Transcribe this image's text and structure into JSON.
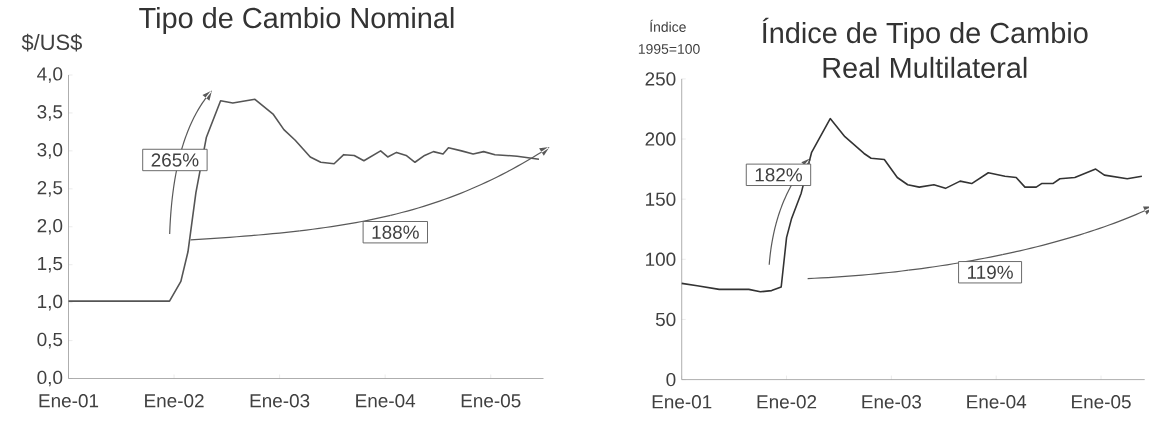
{
  "chart_data": [
    {
      "type": "line",
      "title": "Tipo de Cambio Nominal",
      "ylabel": "$/US$",
      "x": [
        "2001-01-01",
        "2001-12-16",
        "2002-01-25",
        "2002-02-19",
        "2002-03-16",
        "2002-04-22",
        "2002-06-10",
        "2002-07-22",
        "2002-10-07",
        "2002-12-10",
        "2003-01-16",
        "2003-02-25",
        "2003-04-16",
        "2003-05-22",
        "2003-07-07",
        "2003-08-10",
        "2003-09-16",
        "2003-10-19",
        "2003-12-16",
        "2004-01-10",
        "2004-02-10",
        "2004-03-13",
        "2004-04-13",
        "2004-05-16",
        "2004-06-16",
        "2004-07-19",
        "2004-08-07",
        "2004-09-22",
        "2004-11-01",
        "2004-12-07",
        "2005-01-16",
        "2005-04-01",
        "2005-06-16"
      ],
      "values": [
        1.02,
        1.02,
        1.28,
        1.67,
        2.45,
        3.18,
        3.66,
        3.63,
        3.68,
        3.48,
        3.28,
        3.14,
        2.92,
        2.85,
        2.83,
        2.95,
        2.94,
        2.87,
        3.0,
        2.92,
        2.98,
        2.94,
        2.85,
        2.94,
        2.99,
        2.96,
        3.04,
        3.0,
        2.96,
        2.99,
        2.95,
        2.93,
        2.89
      ],
      "color": "#555555",
      "xlim": [
        "2001-01-01",
        "2005-07-01"
      ],
      "xticks": [
        {
          "value": "2001-01-01",
          "label": "Ene-01"
        },
        {
          "value": "2002-01-01",
          "label": "Ene-02"
        },
        {
          "value": "2003-01-01",
          "label": "Ene-03"
        },
        {
          "value": "2004-01-01",
          "label": "Ene-04"
        },
        {
          "value": "2005-01-01",
          "label": "Ene-05"
        }
      ],
      "ylim": [
        0,
        4
      ],
      "yticks": [
        {
          "value": 0,
          "label": "0,0"
        },
        {
          "value": 0.5,
          "label": "0,5"
        },
        {
          "value": 1,
          "label": "1,0"
        },
        {
          "value": 1.5,
          "label": "1,5"
        },
        {
          "value": 2,
          "label": "2,0"
        },
        {
          "value": 2.5,
          "label": "2,5"
        },
        {
          "value": 3,
          "label": "3,0"
        },
        {
          "value": 3.5,
          "label": "3,5"
        },
        {
          "value": 4,
          "label": "4,0"
        }
      ],
      "annotations": [
        "265%",
        "188%"
      ]
    },
    {
      "type": "line",
      "title": "Índice de Tipo de Cambio Real Multilateral",
      "ylabel": "Índice 1995=100",
      "x": [
        "2001-01-01",
        "2001-02-25",
        "2001-05-10",
        "2001-08-22",
        "2001-10-01",
        "2001-11-10",
        "2001-12-13",
        "2002-01-01",
        "2002-01-19",
        "2002-02-22",
        "2002-03-28",
        "2002-06-01",
        "2002-07-22",
        "2002-09-28",
        "2002-10-22",
        "2002-12-07",
        "2003-01-22",
        "2003-02-28",
        "2003-04-07",
        "2003-05-28",
        "2003-07-07",
        "2003-08-28",
        "2003-10-07",
        "2003-12-04",
        "2004-02-01",
        "2004-03-10",
        "2004-04-10",
        "2004-05-19",
        "2004-06-07",
        "2004-07-16",
        "2004-08-10",
        "2004-10-01",
        "2004-12-13",
        "2005-01-13",
        "2005-04-01",
        "2005-05-22"
      ],
      "values": [
        80,
        78,
        75,
        75,
        73,
        74,
        77,
        118,
        134,
        155,
        189,
        217,
        202,
        188,
        184,
        183,
        168,
        162,
        160,
        162,
        159,
        165,
        163,
        172,
        169,
        168,
        160,
        160,
        163,
        163,
        167,
        168,
        175,
        170,
        167,
        169
      ],
      "color": "#333333",
      "xlim": [
        "2001-01-01",
        "2005-06-01"
      ],
      "xticks": [
        {
          "value": "2001-01-01",
          "label": "Ene-01"
        },
        {
          "value": "2002-01-01",
          "label": "Ene-02"
        },
        {
          "value": "2003-01-01",
          "label": "Ene-03"
        },
        {
          "value": "2004-01-01",
          "label": "Ene-04"
        },
        {
          "value": "2005-01-01",
          "label": "Ene-05"
        }
      ],
      "ylim": [
        0,
        250
      ],
      "yticks": [
        0,
        50,
        100,
        150,
        200,
        250
      ],
      "annotations": [
        "182%",
        "119%"
      ]
    }
  ]
}
